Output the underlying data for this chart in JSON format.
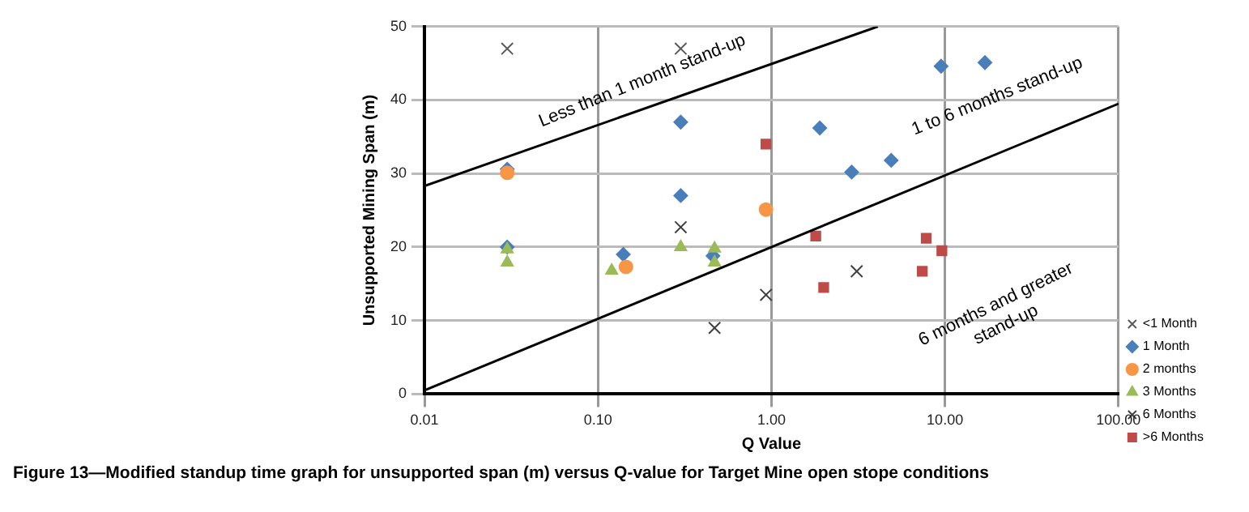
{
  "chart_data": {
    "type": "scatter",
    "xlabel": "Q Value",
    "ylabel": "Unsupported Mining Span (m)",
    "log": "x",
    "xlim": [
      0.01,
      100
    ],
    "xticks": [
      {
        "value": 0.01,
        "label": "0.01"
      },
      {
        "value": 0.1,
        "label": "0.10"
      },
      {
        "value": 1,
        "label": "1.00"
      },
      {
        "value": 10,
        "label": "10.00"
      },
      {
        "value": 100,
        "label": "100.00"
      }
    ],
    "ylim": [
      0,
      50
    ],
    "yticks": [
      0,
      10,
      20,
      30,
      40,
      50
    ],
    "grid": true,
    "legend": "right",
    "series": [
      {
        "name": "<1 Month",
        "color": "#595959",
        "marker": "cross",
        "x": [
          0.03,
          0.3
        ],
        "values": [
          47,
          47
        ]
      },
      {
        "name": "1 Month",
        "color": "#4a7ebb",
        "marker": "diamond",
        "x": [
          0.03,
          0.03,
          0.14,
          0.3,
          0.3,
          0.46,
          1.9,
          2.9,
          4.9,
          9.5,
          17
        ],
        "values": [
          30.6,
          20,
          19,
          37,
          27,
          18.8,
          36.2,
          30.2,
          31.8,
          44.6,
          45.1
        ]
      },
      {
        "name": "2 months",
        "color": "#f79646",
        "marker": "circle",
        "x": [
          0.03,
          0.145,
          0.93
        ],
        "values": [
          30.1,
          17.3,
          25.1
        ]
      },
      {
        "name": "3 Months",
        "color": "#9bbb59",
        "marker": "triangle",
        "x": [
          0.03,
          0.03,
          0.12,
          0.3,
          0.47,
          0.47
        ],
        "values": [
          19.7,
          17.9,
          16.8,
          20,
          19.8,
          17.9
        ]
      },
      {
        "name": "6 Months",
        "color": "#404040",
        "marker": "cross",
        "x": [
          0.3,
          0.47,
          0.93,
          3.1
        ],
        "values": [
          22.7,
          9,
          13.5,
          16.7
        ]
      },
      {
        "name": ">6 Months",
        "color": "#be4b48",
        "marker": "square",
        "x": [
          0.93,
          1.8,
          2.0,
          7.8,
          9.6,
          7.4
        ],
        "values": [
          34,
          21.5,
          14.5,
          21.2,
          19.5,
          16.7
        ]
      },
      {
        "type": "line",
        "color": "#000000",
        "marker": "none",
        "x": [
          0.01,
          4.1
        ],
        "values": [
          28.3,
          50
        ]
      },
      {
        "type": "line",
        "color": "#000000",
        "marker": "none",
        "x": [
          0.01,
          100
        ],
        "values": [
          0.5,
          39.5
        ]
      }
    ],
    "annotations": [
      "Less than 1 month stand-up",
      "1 to 6 months stand-up",
      "6 months and greater\nstand-up",
      "Figure 13—Modified standup time graph for unsupported span (m) versus Q-value for Target Mine open stope conditions"
    ]
  }
}
